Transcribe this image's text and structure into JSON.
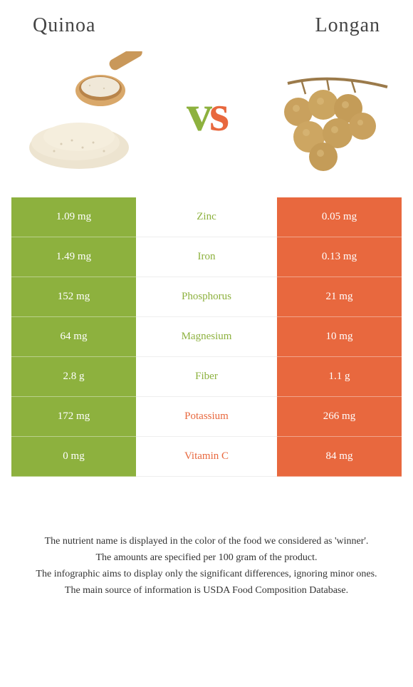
{
  "left": {
    "title": "Quinoa",
    "color": "#8db13e"
  },
  "right": {
    "title": "Longan",
    "color": "#e8683e"
  },
  "vs": {
    "v": "v",
    "s": "s"
  },
  "rows": [
    {
      "left": "1.09 mg",
      "label": "Zinc",
      "right": "0.05 mg",
      "winner": "left"
    },
    {
      "left": "1.49 mg",
      "label": "Iron",
      "right": "0.13 mg",
      "winner": "left"
    },
    {
      "left": "152 mg",
      "label": "Phosphorus",
      "right": "21 mg",
      "winner": "left"
    },
    {
      "left": "64 mg",
      "label": "Magnesium",
      "right": "10 mg",
      "winner": "left"
    },
    {
      "left": "2.8 g",
      "label": "Fiber",
      "right": "1.1 g",
      "winner": "left"
    },
    {
      "left": "172 mg",
      "label": "Potassium",
      "right": "266 mg",
      "winner": "right"
    },
    {
      "left": "0 mg",
      "label": "Vitamin C",
      "right": "84 mg",
      "winner": "right"
    }
  ],
  "footer": {
    "line1": "The nutrient name is displayed in the color of the food we considered as 'winner'.",
    "line2": "The amounts are specified per 100 gram of the product.",
    "line3": "The infographic aims to display only the significant differences, ignoring minor ones.",
    "line4": "The main source of information is USDA Food Composition Database."
  }
}
